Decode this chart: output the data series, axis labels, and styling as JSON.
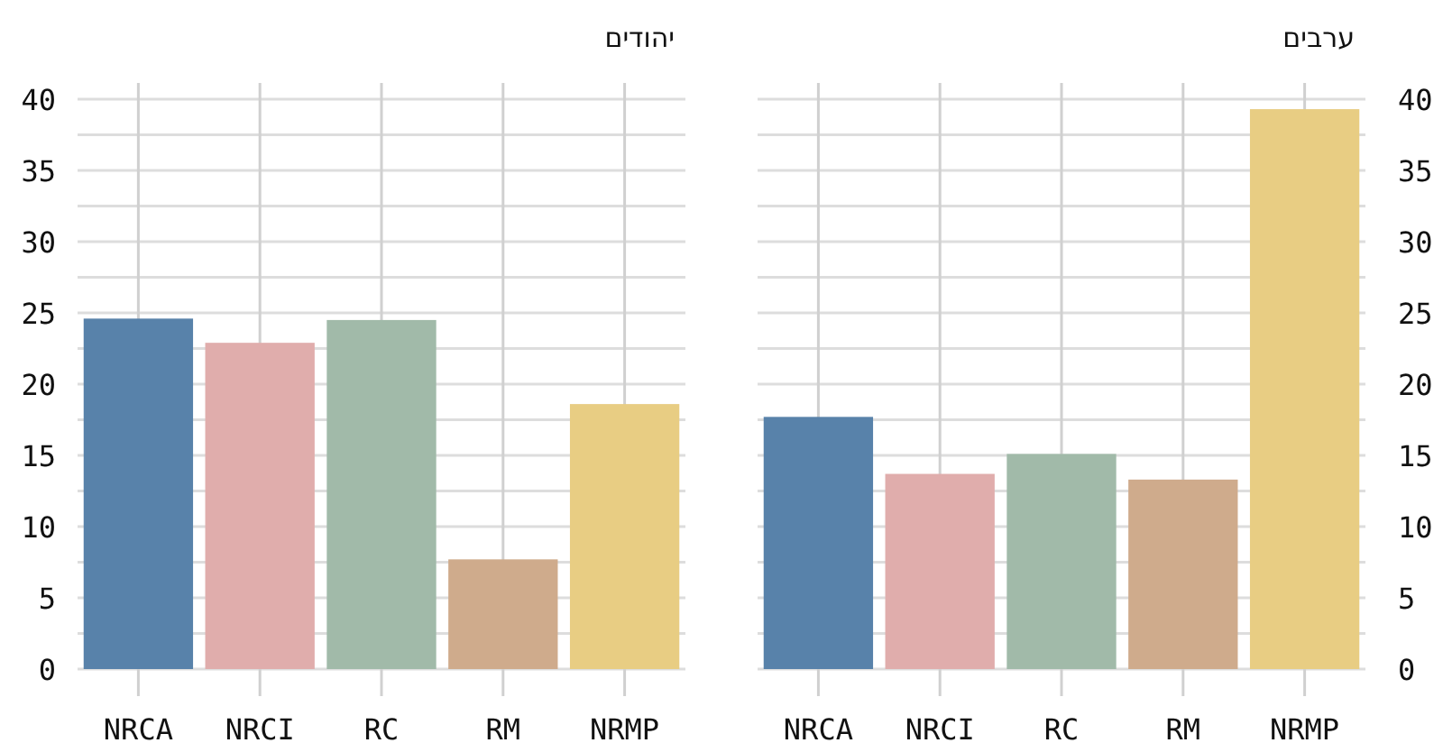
{
  "chart_data": [
    {
      "type": "bar",
      "title": "יהודים",
      "categories": [
        "NRCA",
        "NRCI",
        "RC",
        "RM",
        "NRMP"
      ],
      "values": [
        24.6,
        22.9,
        24.5,
        7.7,
        18.6
      ],
      "colors": [
        "#5882aa",
        "#e0adac",
        "#a1baa9",
        "#cfab8c",
        "#e8cd83"
      ],
      "ylim": [
        0,
        40
      ],
      "yticks": [
        0,
        {
          "value": 2.5,
          "label": null
        },
        5,
        {
          "value": 7.5,
          "label": null
        },
        10,
        {
          "value": 12.5,
          "label": null
        },
        15,
        {
          "value": 17.5,
          "label": null
        },
        20,
        {
          "value": 22.5,
          "label": null
        },
        25,
        {
          "value": 27.5,
          "label": null
        },
        30,
        {
          "value": 32.5,
          "label": null
        },
        35,
        {
          "value": 37.5,
          "label": null
        },
        40
      ],
      "grid": true
    },
    {
      "type": "bar",
      "title": "ערבים",
      "categories": [
        "NRCA",
        "NRCI",
        "RC",
        "RM",
        "NRMP"
      ],
      "values": [
        17.7,
        13.7,
        15.1,
        13.3,
        39.3
      ],
      "colors": [
        "#5882aa",
        "#e0adac",
        "#a1baa9",
        "#cfab8c",
        "#e8cd83"
      ],
      "ylim": [
        0,
        40
      ],
      "yticks": [
        0,
        {
          "value": 2.5,
          "label": null
        },
        5,
        {
          "value": 7.5,
          "label": null
        },
        10,
        {
          "value": 12.5,
          "label": null
        },
        15,
        {
          "value": 17.5,
          "label": null
        },
        20,
        {
          "value": 22.5,
          "label": null
        },
        25,
        {
          "value": 27.5,
          "label": null
        },
        30,
        {
          "value": 32.5,
          "label": null
        },
        35,
        {
          "value": 37.5,
          "label": null
        },
        40
      ],
      "grid": true
    }
  ]
}
